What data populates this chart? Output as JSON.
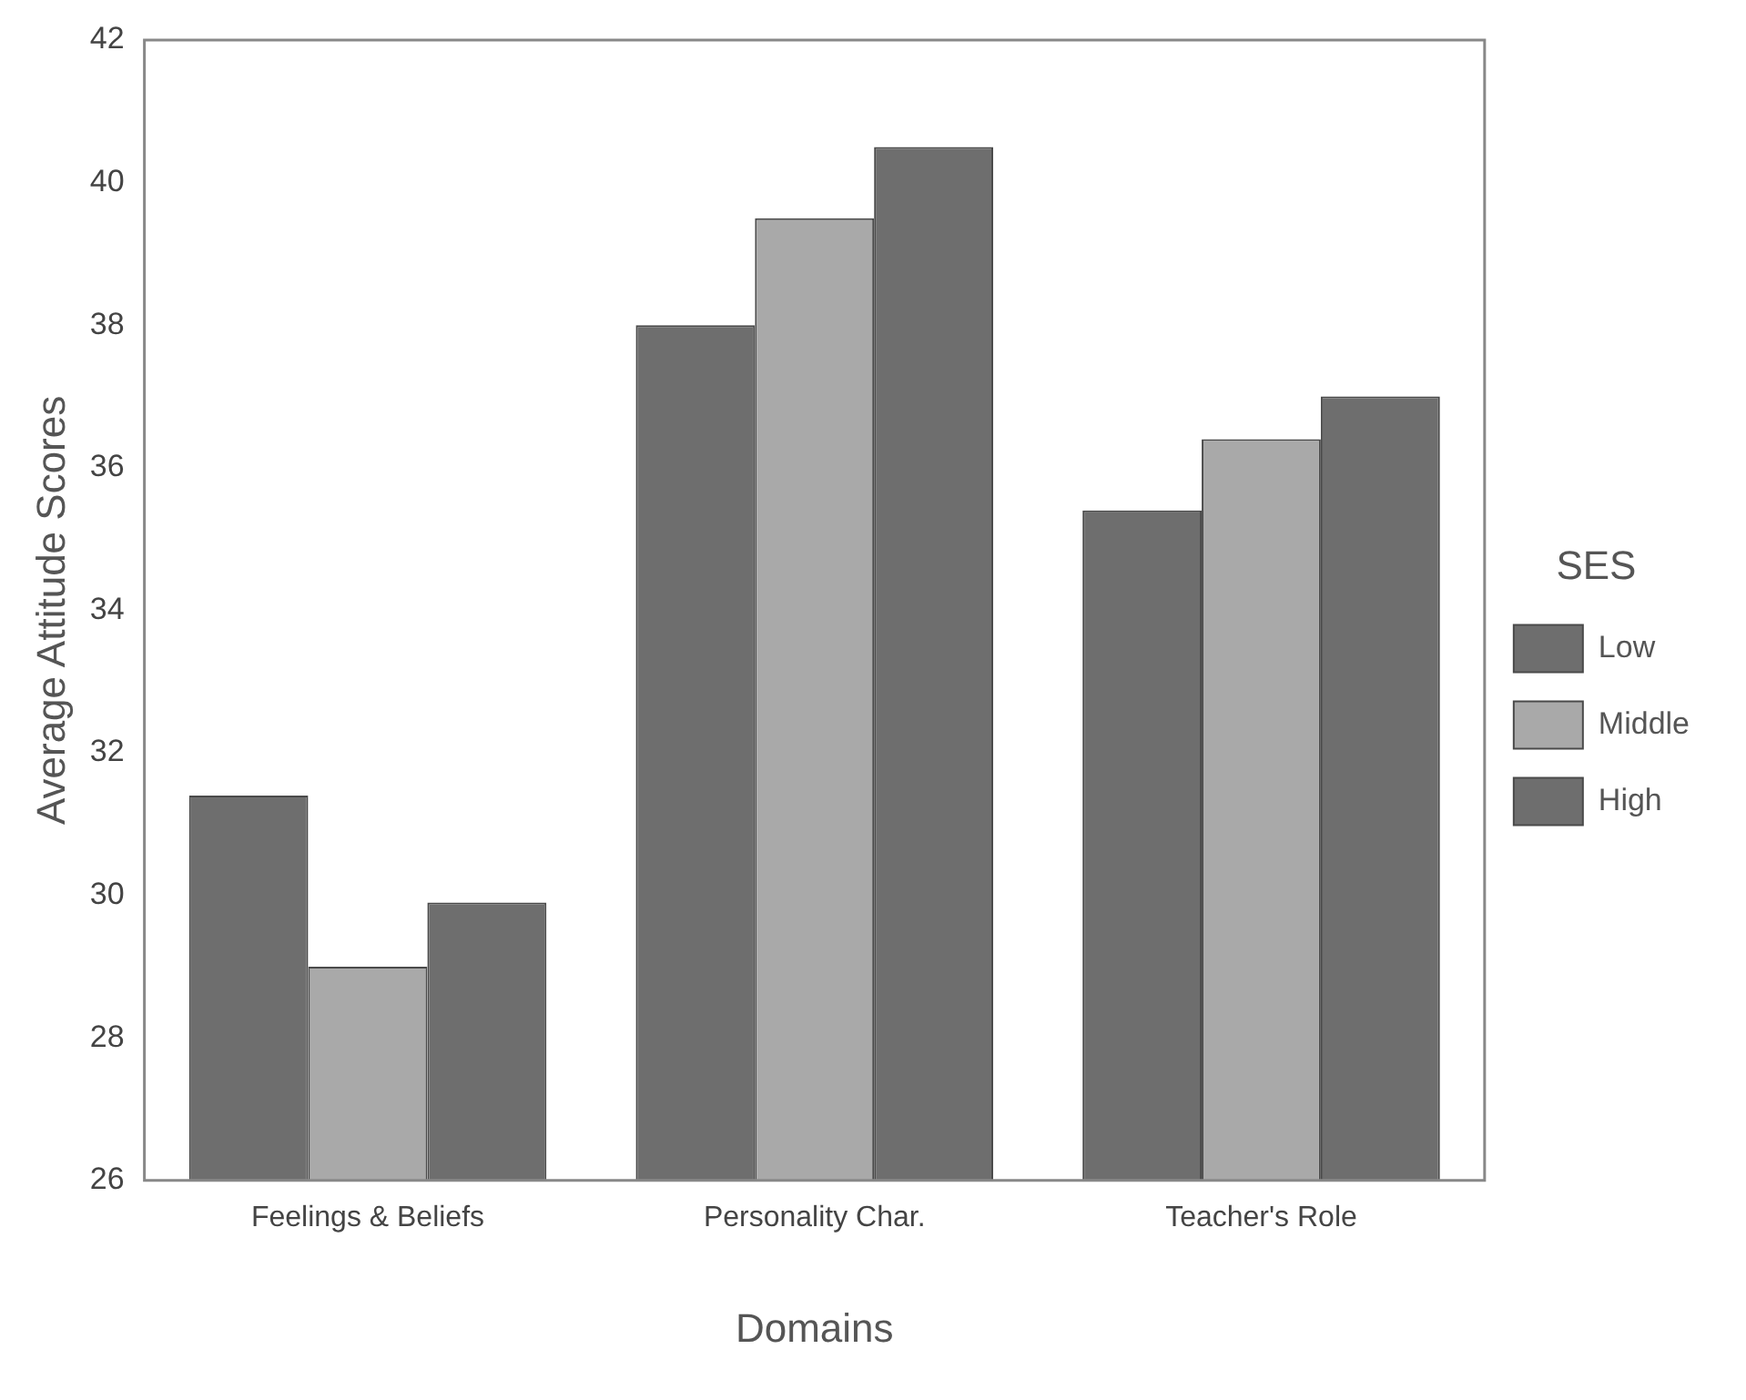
{
  "chart_data": {
    "type": "bar",
    "xlabel": "Domains",
    "ylabel": "Average Attitude Scores",
    "legend_title": "SES",
    "categories": [
      "Feelings & Beliefs",
      "Personality Char.",
      "Teacher's Role"
    ],
    "series": [
      {
        "name": "Low",
        "color": "#6e6e6e",
        "values": [
          31.4,
          38.0,
          35.4
        ]
      },
      {
        "name": "Middle",
        "color": "#a9a9a9",
        "values": [
          29.0,
          39.5,
          36.4
        ]
      },
      {
        "name": "High",
        "color": "#6e6e6e",
        "values": [
          29.9,
          40.5,
          37.0
        ]
      }
    ],
    "ylim": [
      26,
      42
    ],
    "yticks": [
      26,
      28,
      30,
      32,
      34,
      36,
      38,
      40,
      42
    ],
    "grid": false,
    "legend": "right"
  }
}
